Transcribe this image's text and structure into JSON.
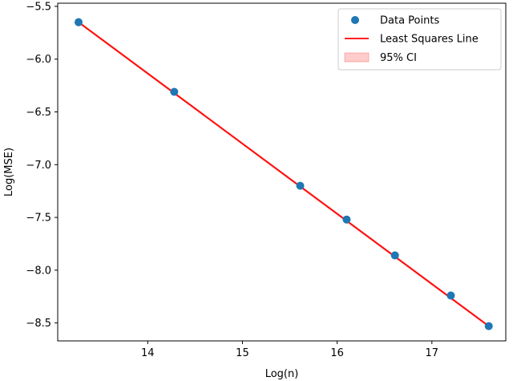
{
  "chart_data": {
    "type": "scatter",
    "xlabel": "Log(n)",
    "ylabel": "Log(MSE)",
    "xlim": [
      13.05,
      17.78
    ],
    "ylim": [
      -8.67,
      -5.47
    ],
    "xticks": [
      14,
      15,
      16,
      17
    ],
    "yticks": [
      -5.5,
      -6.0,
      -6.5,
      -7.0,
      -7.5,
      -8.0,
      -8.5
    ],
    "ytick_labels": [
      "−5.5",
      "−6.0",
      "−6.5",
      "−7.0",
      "−7.5",
      "−8.0",
      "−8.5"
    ],
    "series": [
      {
        "name": "Data Points",
        "kind": "scatter",
        "color": "#1f77b4",
        "x": [
          13.27,
          14.28,
          15.61,
          16.1,
          16.61,
          17.2,
          17.6
        ],
        "y": [
          -5.65,
          -6.31,
          -7.2,
          -7.52,
          -7.86,
          -8.24,
          -8.53
        ]
      },
      {
        "name": "Least Squares Line",
        "kind": "line",
        "color": "#ff0000",
        "x": [
          13.27,
          17.6
        ],
        "y": [
          -5.65,
          -8.53
        ]
      },
      {
        "name": "95% CI",
        "kind": "band",
        "color": "#ff0000",
        "opacity": 0.2,
        "x": [
          13.27,
          17.6
        ],
        "y_low": [
          -5.665,
          -8.545
        ],
        "y_high": [
          -5.635,
          -8.515
        ]
      }
    ],
    "legend_location": "top-right",
    "grid": false
  }
}
